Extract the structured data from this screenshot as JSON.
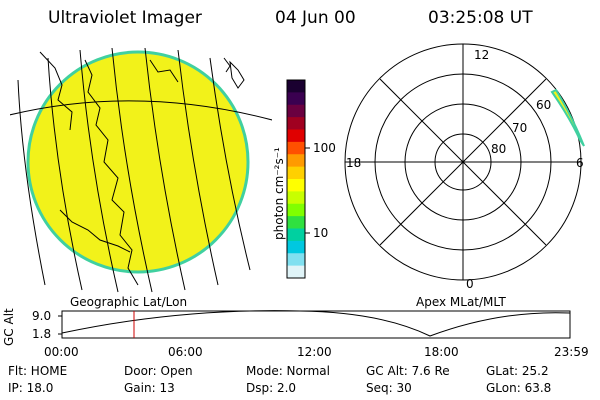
{
  "header": {
    "title": "Ultraviolet Imager",
    "date": "04 Jun 00",
    "time": "03:25:08 UT"
  },
  "colorbar": {
    "label": "photon cm⁻²s⁻¹",
    "tick_100": "100",
    "tick_10": "10",
    "colors": [
      "#1a0030",
      "#3a0050",
      "#6a0040",
      "#a00020",
      "#e00000",
      "#ff5000",
      "#ff9a00",
      "#ffd000",
      "#ffff00",
      "#c8ff00",
      "#80ff00",
      "#30e040",
      "#00d0a0",
      "#00c8e0",
      "#80e0f0",
      "#e0f4f8"
    ]
  },
  "left_panel": {
    "label": "Geographic Lat/Lon",
    "fill_color": "#f2f21a",
    "edge_color": "#40d0a0"
  },
  "right_panel": {
    "label": "Apex MLat/MLT",
    "mlt_top": "12",
    "mlt_left": "18",
    "mlt_right": "6",
    "mlt_bottom": "0",
    "lat_60": "60",
    "lat_70": "70",
    "lat_80": "80"
  },
  "altitude_plot": {
    "ylabel": "GC Alt",
    "ytick_top": "9.0",
    "ytick_bottom": "1.8",
    "xticks": [
      "00:00",
      "06:00",
      "12:00",
      "18:00",
      "23:59"
    ],
    "marker_color": "#cc0000"
  },
  "info": {
    "flt": "Flt: HOME",
    "door": "Door: Open",
    "mode": "Mode: Normal",
    "gcalt": "GC Alt: 7.6 Re",
    "glat": "GLat:  25.2",
    "ip": "IP: 18.0",
    "gain": "Gain: 13",
    "dsp": "Dsp:     2.0",
    "seq": "Seq: 30",
    "glon": "GLon:  63.8"
  }
}
